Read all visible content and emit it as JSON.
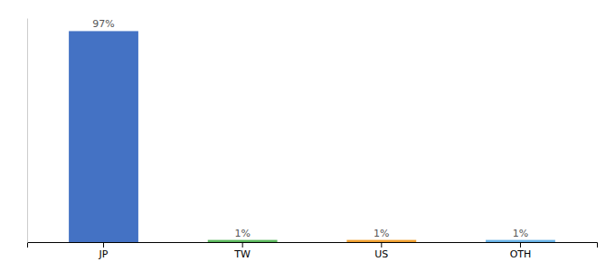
{
  "chart_data": {
    "type": "bar",
    "categories": [
      "JP",
      "TW",
      "US",
      "OTH"
    ],
    "values": [
      97,
      1,
      1,
      1
    ],
    "value_labels": [
      "97%",
      "1%",
      "1%",
      "1%"
    ],
    "colors": [
      "#4472C4",
      "#5BB85D",
      "#F0A030",
      "#69B3E7"
    ],
    "ylim": [
      0,
      103
    ],
    "data_labels": true,
    "tick_labels": "x",
    "grid": false
  }
}
